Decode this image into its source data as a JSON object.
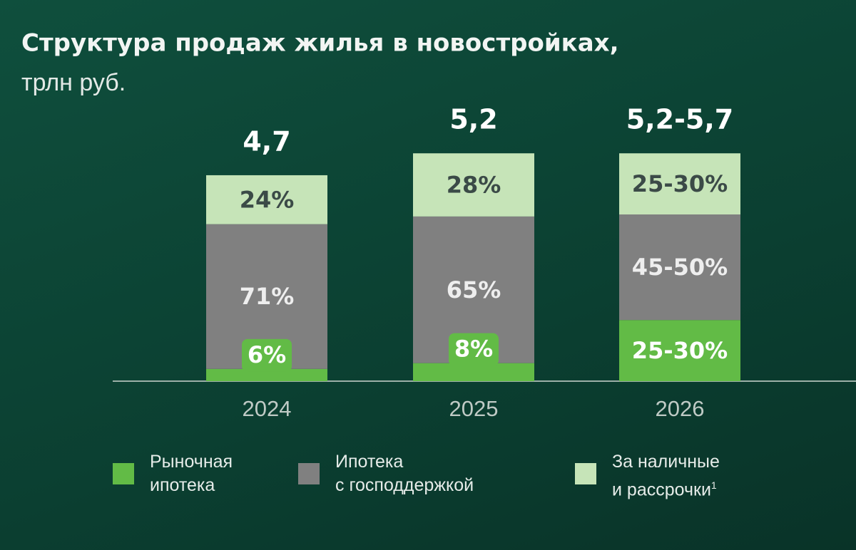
{
  "chart_data": {
    "type": "stacked_bar",
    "title": "Структура продаж жилья в новостройках,",
    "subtitle": "трлн руб.",
    "categories": [
      "2024",
      "2025",
      "2026"
    ],
    "totals": [
      4.7,
      5.2,
      [
        5.2,
        5.7
      ]
    ],
    "total_labels": [
      "4,7",
      "5,2",
      "5,2-5,7"
    ],
    "series": [
      {
        "name": "Рыночная\nипотека",
        "color": "#62bb46",
        "values": [
          6,
          8,
          [
            25,
            30
          ]
        ],
        "value_labels": [
          "6%",
          "8%",
          "25-30%"
        ]
      },
      {
        "name": "Ипотека\nс господдержкой",
        "color": "#808080",
        "values": [
          71,
          65,
          [
            45,
            50
          ]
        ],
        "value_labels": [
          "71%",
          "65%",
          "45-50%"
        ]
      },
      {
        "name": "За наличные\nи рассрочки",
        "note": "1",
        "color": "#c6e4b8",
        "values": [
          24,
          28,
          [
            25,
            30
          ]
        ],
        "value_labels": [
          "24%",
          "28%",
          "25-30%"
        ]
      }
    ]
  }
}
